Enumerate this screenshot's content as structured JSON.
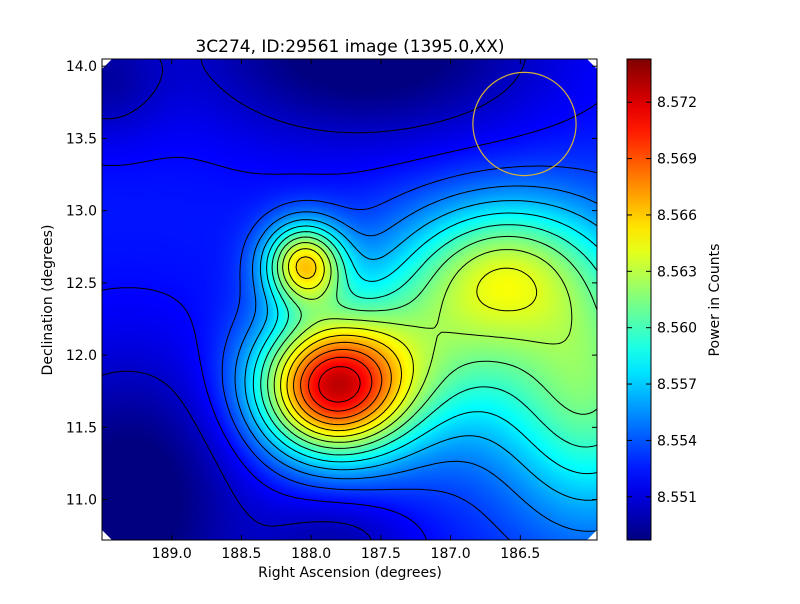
{
  "chart_data": {
    "type": "heatmap",
    "title": "3C274, ID:29561 image (1395.0,XX)",
    "xlabel": "Right Ascension (degrees)",
    "ylabel": "Declination (degrees)",
    "colorbar_label": "Power in Counts",
    "colormap": "jet",
    "x_reversed": true,
    "xlim": [
      189.5,
      185.95
    ],
    "ylim": [
      10.72,
      14.05
    ],
    "x_ticks": [
      189.0,
      188.5,
      188.0,
      187.5,
      187.0,
      186.5
    ],
    "x_tick_labels": [
      "189.0",
      "188.5",
      "188.0",
      "187.5",
      "187.0",
      "186.5"
    ],
    "y_ticks": [
      11.0,
      11.5,
      12.0,
      12.5,
      13.0,
      13.5,
      14.0
    ],
    "y_tick_labels": [
      "11.0",
      "11.5",
      "12.0",
      "12.5",
      "13.0",
      "13.5",
      "14.0"
    ],
    "colorbar_range": [
      8.5487,
      8.5743
    ],
    "colorbar_ticks": [
      8.551,
      8.554,
      8.557,
      8.56,
      8.563,
      8.566,
      8.569,
      8.572
    ],
    "colorbar_tick_labels": [
      "8.551",
      "8.554",
      "8.557",
      "8.560",
      "8.563",
      "8.566",
      "8.569",
      "8.572"
    ],
    "components": [
      {
        "ra": 187.85,
        "dec": 11.78,
        "amp": 0.0185,
        "sigma_ra": 0.38,
        "sigma_dec": 0.33
      },
      {
        "ra": 188.05,
        "dec": 12.63,
        "amp": 0.0125,
        "sigma_ra": 0.2,
        "sigma_dec": 0.2
      },
      {
        "ra": 186.0,
        "dec": 11.8,
        "amp": 0.0085,
        "sigma_ra": 0.45,
        "sigma_dec": 0.65
      },
      {
        "ra": 186.6,
        "dec": 12.6,
        "amp": 0.0075,
        "sigma_ra": 0.45,
        "sigma_dec": 0.35
      },
      {
        "ra": 187.1,
        "dec": 12.1,
        "amp": 0.0065,
        "sigma_ra": 0.5,
        "sigma_dec": 0.5
      },
      {
        "ra": 189.3,
        "dec": 11.0,
        "amp": -0.0045,
        "sigma_ra": 0.6,
        "sigma_dec": 0.7
      },
      {
        "ra": 187.6,
        "dec": 14.1,
        "amp": -0.0045,
        "sigma_ra": 0.9,
        "sigma_dec": 0.45
      },
      {
        "ra": 189.5,
        "dec": 13.9,
        "amp": -0.0025,
        "sigma_ra": 0.3,
        "sigma_dec": 0.3
      },
      {
        "ra": 187.8,
        "dec": 10.72,
        "amp": -0.0025,
        "sigma_ra": 0.4,
        "sigma_dec": 0.25
      }
    ],
    "background_level": 8.5525,
    "contour_levels": [
      8.5505,
      8.552,
      8.5535,
      8.555,
      8.5565,
      8.558,
      8.5595,
      8.561,
      8.5625,
      8.564,
      8.5655,
      8.567,
      8.5685,
      8.57,
      8.5715,
      8.573
    ],
    "contour_color": "#000000",
    "beam_circle": {
      "ra": 186.47,
      "dec": 13.6,
      "radius_deg": 0.37,
      "color": "#d4b13a"
    }
  }
}
